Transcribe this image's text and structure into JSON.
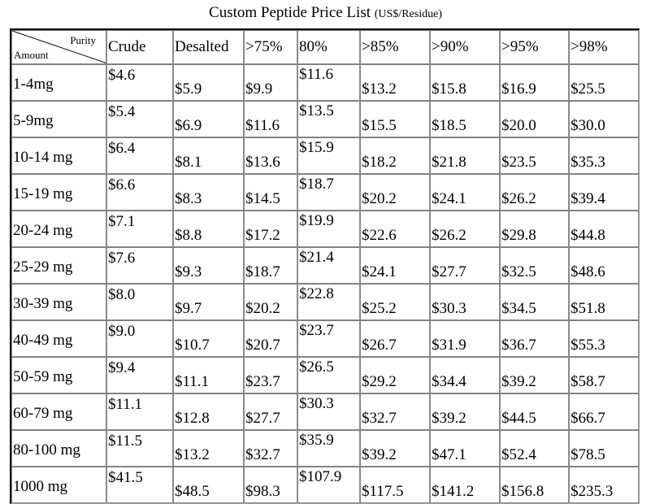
{
  "title": {
    "main": "Custom Peptide Price List",
    "unit": "(US$/Residue)"
  },
  "table": {
    "corner": {
      "top_right": "Purity",
      "bottom_left": "Amount"
    },
    "columns": [
      "Crude",
      "Desalted",
      ">75%",
      "80%",
      ">85%",
      ">90%",
      ">95%",
      ">98%"
    ],
    "rows": [
      {
        "amount": "1-4mg",
        "prices": [
          "$4.6",
          "$5.9",
          "$9.9",
          "$11.6",
          "$13.2",
          "$15.8",
          "$16.9",
          "$25.5"
        ]
      },
      {
        "amount": "5-9mg",
        "prices": [
          "$5.4",
          "$6.9",
          "$11.6",
          "$13.5",
          "$15.5",
          "$18.5",
          "$20.0",
          "$30.0"
        ]
      },
      {
        "amount": "10-14 mg",
        "prices": [
          "$6.4",
          "$8.1",
          "$13.6",
          "$15.9",
          "$18.2",
          "$21.8",
          "$23.5",
          "$35.3"
        ]
      },
      {
        "amount": "15-19 mg",
        "prices": [
          "$6.6",
          "$8.3",
          "$14.5",
          "$18.7",
          "$20.2",
          "$24.1",
          "$26.2",
          "$39.4"
        ]
      },
      {
        "amount": "20-24 mg",
        "prices": [
          "$7.1",
          "$8.8",
          "$17.2",
          "$19.9",
          "$22.6",
          "$26.2",
          "$29.8",
          "$44.8"
        ]
      },
      {
        "amount": "25-29 mg",
        "prices": [
          "$7.6",
          "$9.3",
          "$18.7",
          "$21.4",
          "$24.1",
          "$27.7",
          "$32.5",
          "$48.6"
        ]
      },
      {
        "amount": "30-39 mg",
        "prices": [
          "$8.0",
          "$9.7",
          "$20.2",
          "$22.8",
          "$25.2",
          "$30.3",
          "$34.5",
          "$51.8"
        ]
      },
      {
        "amount": "40-49 mg",
        "prices": [
          "$9.0",
          "$10.7",
          "$20.7",
          "$23.7",
          "$26.7",
          "$31.9",
          "$36.7",
          "$55.3"
        ]
      },
      {
        "amount": "50-59 mg",
        "prices": [
          "$9.4",
          "$11.1",
          "$23.7",
          "$26.5",
          "$29.2",
          "$34.4",
          "$39.2",
          "$58.7"
        ]
      },
      {
        "amount": "60-79 mg",
        "prices": [
          "$11.1",
          "$12.8",
          "$27.7",
          "$30.3",
          "$32.7",
          "$39.2",
          "$44.5",
          "$66.7"
        ]
      },
      {
        "amount": "80-100 mg",
        "prices": [
          "$11.5",
          "$13.2",
          "$32.7",
          "$35.9",
          "$39.2",
          "$47.1",
          "$52.4",
          "$78.5"
        ]
      },
      {
        "amount": "1000 mg",
        "prices": [
          "$41.5",
          "$48.5",
          "$98.3",
          "$107.9",
          "$117.5",
          "$141.2",
          "$156.8",
          "$235.3"
        ]
      }
    ]
  }
}
